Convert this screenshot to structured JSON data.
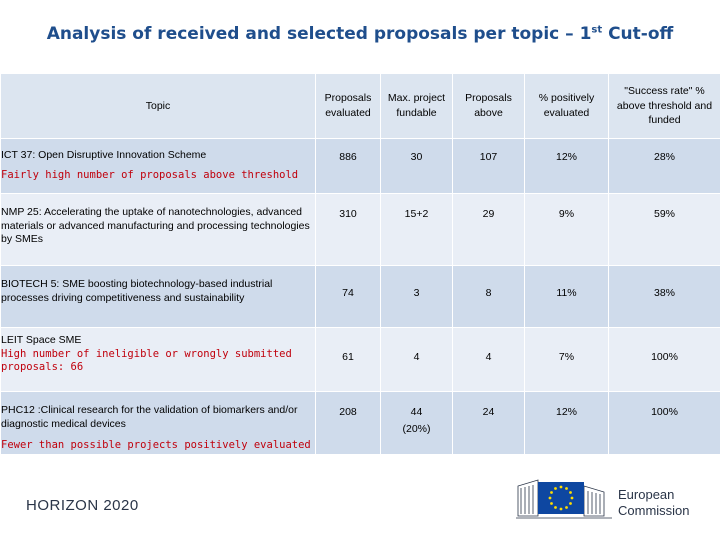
{
  "title": {
    "main": "Analysis of received and selected proposals per topic – 1",
    "sup": "st",
    "tail": " Cut-off"
  },
  "headers": {
    "topic": "Topic",
    "evaluated": "Proposals evaluated",
    "max_fundable": "Max. project fundable",
    "above": "Proposals above",
    "pct_positive": "% positively evaluated",
    "success_rate": "\"Success rate\" % above threshold and funded"
  },
  "rows": [
    {
      "topic": "ICT 37: Open Disruptive Innovation Scheme",
      "note": "Fairly high number of proposals above threshold",
      "evaluated": "886",
      "max_fundable": "30",
      "max_fundable_sub": "",
      "above": "107",
      "pct_positive": "12%",
      "success_rate": "28%"
    },
    {
      "topic": "NMP 25: Accelerating the uptake of nanotechnologies, advanced materials or advanced manufacturing and processing technologies by SMEs",
      "note": "",
      "evaluated": "310",
      "max_fundable": "15+2",
      "max_fundable_sub": "",
      "above": "29",
      "pct_positive": "9%",
      "success_rate": "59%"
    },
    {
      "topic": "BIOTECH 5: SME boosting biotechnology-based industrial processes driving competitiveness and sustainability",
      "note": "",
      "evaluated": "74",
      "max_fundable": "3",
      "max_fundable_sub": "",
      "above": "8",
      "pct_positive": "11%",
      "success_rate": "38%"
    },
    {
      "topic": "LEIT Space SME",
      "note": "High number of ineligible or wrongly submitted proposals: 66",
      "evaluated": "61",
      "max_fundable": "4",
      "max_fundable_sub": "",
      "above": "4",
      "pct_positive": "7%",
      "success_rate": "100%"
    },
    {
      "topic": "PHC12 :Clinical research for the validation of biomarkers and/or diagnostic medical devices",
      "note": "Fewer than possible projects positively evaluated",
      "evaluated": "208",
      "max_fundable": "44",
      "max_fundable_sub": "(20%)",
      "above": "24",
      "pct_positive": "12%",
      "success_rate": "100%"
    }
  ],
  "footer": {
    "program": "HORIZON 2020",
    "ec_line1": "European",
    "ec_line2": "Commission"
  },
  "colors": {
    "title": "#1f4e8c",
    "row_dark": "#cfdbeb",
    "row_light": "#e9eef6",
    "note": "#c0000c",
    "eu_blue": "#0e47a1",
    "eu_star": "#ffdd00"
  }
}
